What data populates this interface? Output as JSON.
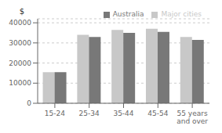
{
  "chart_data": {
    "type": "bar",
    "ylabel": "$",
    "categories": [
      "15-24",
      "25-34",
      "35-44",
      "45-54",
      "55 years\nand over"
    ],
    "series": [
      {
        "name": "Major cities",
        "color": "#c8c8c8",
        "values": [
          15500,
          34000,
          36500,
          37000,
          33000
        ]
      },
      {
        "name": "Australia",
        "color": "#787878",
        "values": [
          15500,
          33000,
          35000,
          35500,
          31500
        ]
      }
    ],
    "ylim": [
      0,
      42000
    ],
    "yticks": [
      0,
      10000,
      20000,
      30000,
      40000
    ],
    "grid": true,
    "legend": "top"
  }
}
